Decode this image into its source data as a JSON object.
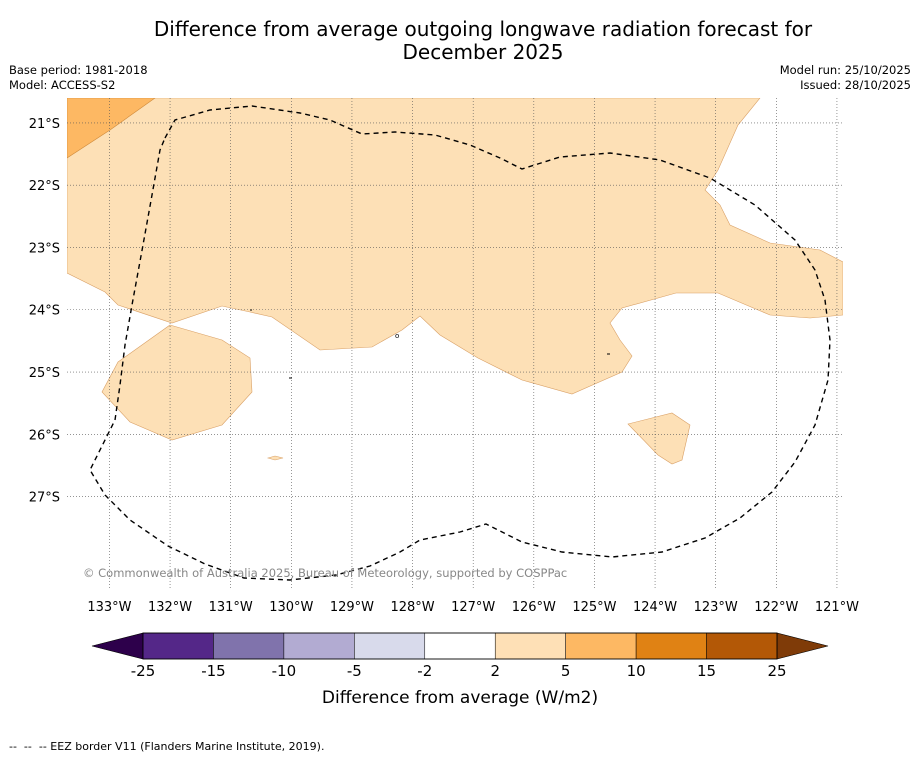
{
  "header": {
    "title_line1": "Difference from average outgoing longwave radiation forecast for",
    "title_line2": "December 2025",
    "base_period": "Base period: 1981-2018",
    "model": "Model: ACCESS-S2",
    "model_run": "Model run: 25/10/2025",
    "issued": "Issued: 28/10/2025"
  },
  "map": {
    "lon_range": [
      -133.7,
      -120.9
    ],
    "lat_range": [
      -28.5,
      -20.6
    ],
    "lon_ticks": [
      {
        "value": -133,
        "label": "133°W"
      },
      {
        "value": -132,
        "label": "132°W"
      },
      {
        "value": -131,
        "label": "131°W"
      },
      {
        "value": -130,
        "label": "130°W"
      },
      {
        "value": -129,
        "label": "129°W"
      },
      {
        "value": -128,
        "label": "128°W"
      },
      {
        "value": -127,
        "label": "127°W"
      },
      {
        "value": -126,
        "label": "126°W"
      },
      {
        "value": -125,
        "label": "125°W"
      },
      {
        "value": -124,
        "label": "124°W"
      },
      {
        "value": -123,
        "label": "123°W"
      },
      {
        "value": -122,
        "label": "122°W"
      },
      {
        "value": -121,
        "label": "121°W"
      }
    ],
    "lat_ticks": [
      {
        "value": -21,
        "label": "21°S"
      },
      {
        "value": -22,
        "label": "22°S"
      },
      {
        "value": -23,
        "label": "23°S"
      },
      {
        "value": -24,
        "label": "24°S"
      },
      {
        "value": -25,
        "label": "25°S"
      },
      {
        "value": -26,
        "label": "26°S"
      },
      {
        "value": -27,
        "label": "27°S"
      }
    ],
    "copyright": "© Commonwealth of Australia 2025, Bureau of Meteorology, supported by COSPPac",
    "colors": {
      "anomaly_2_to_5": "#fde0b6",
      "anomaly_5_to_10": "#fdb863",
      "eez_border": "#000000",
      "gridline": "#555555"
    }
  },
  "colorbar": {
    "label": "Difference from average (W/m2)",
    "ticks": [
      "-25",
      "-15",
      "-10",
      "-5",
      "-2",
      "2",
      "5",
      "10",
      "15",
      "25"
    ],
    "under_color": "#2d004b",
    "over_color": "#7f3b08",
    "segment_colors": [
      "#542788",
      "#8073ac",
      "#b2abd2",
      "#d8daeb",
      "#ffffff",
      "#fee0b6",
      "#fdb863",
      "#e08214",
      "#b35806"
    ]
  },
  "legend": {
    "eez_label": "-- EEZ border V11 (Flanders Marine Institute, 2019)."
  }
}
